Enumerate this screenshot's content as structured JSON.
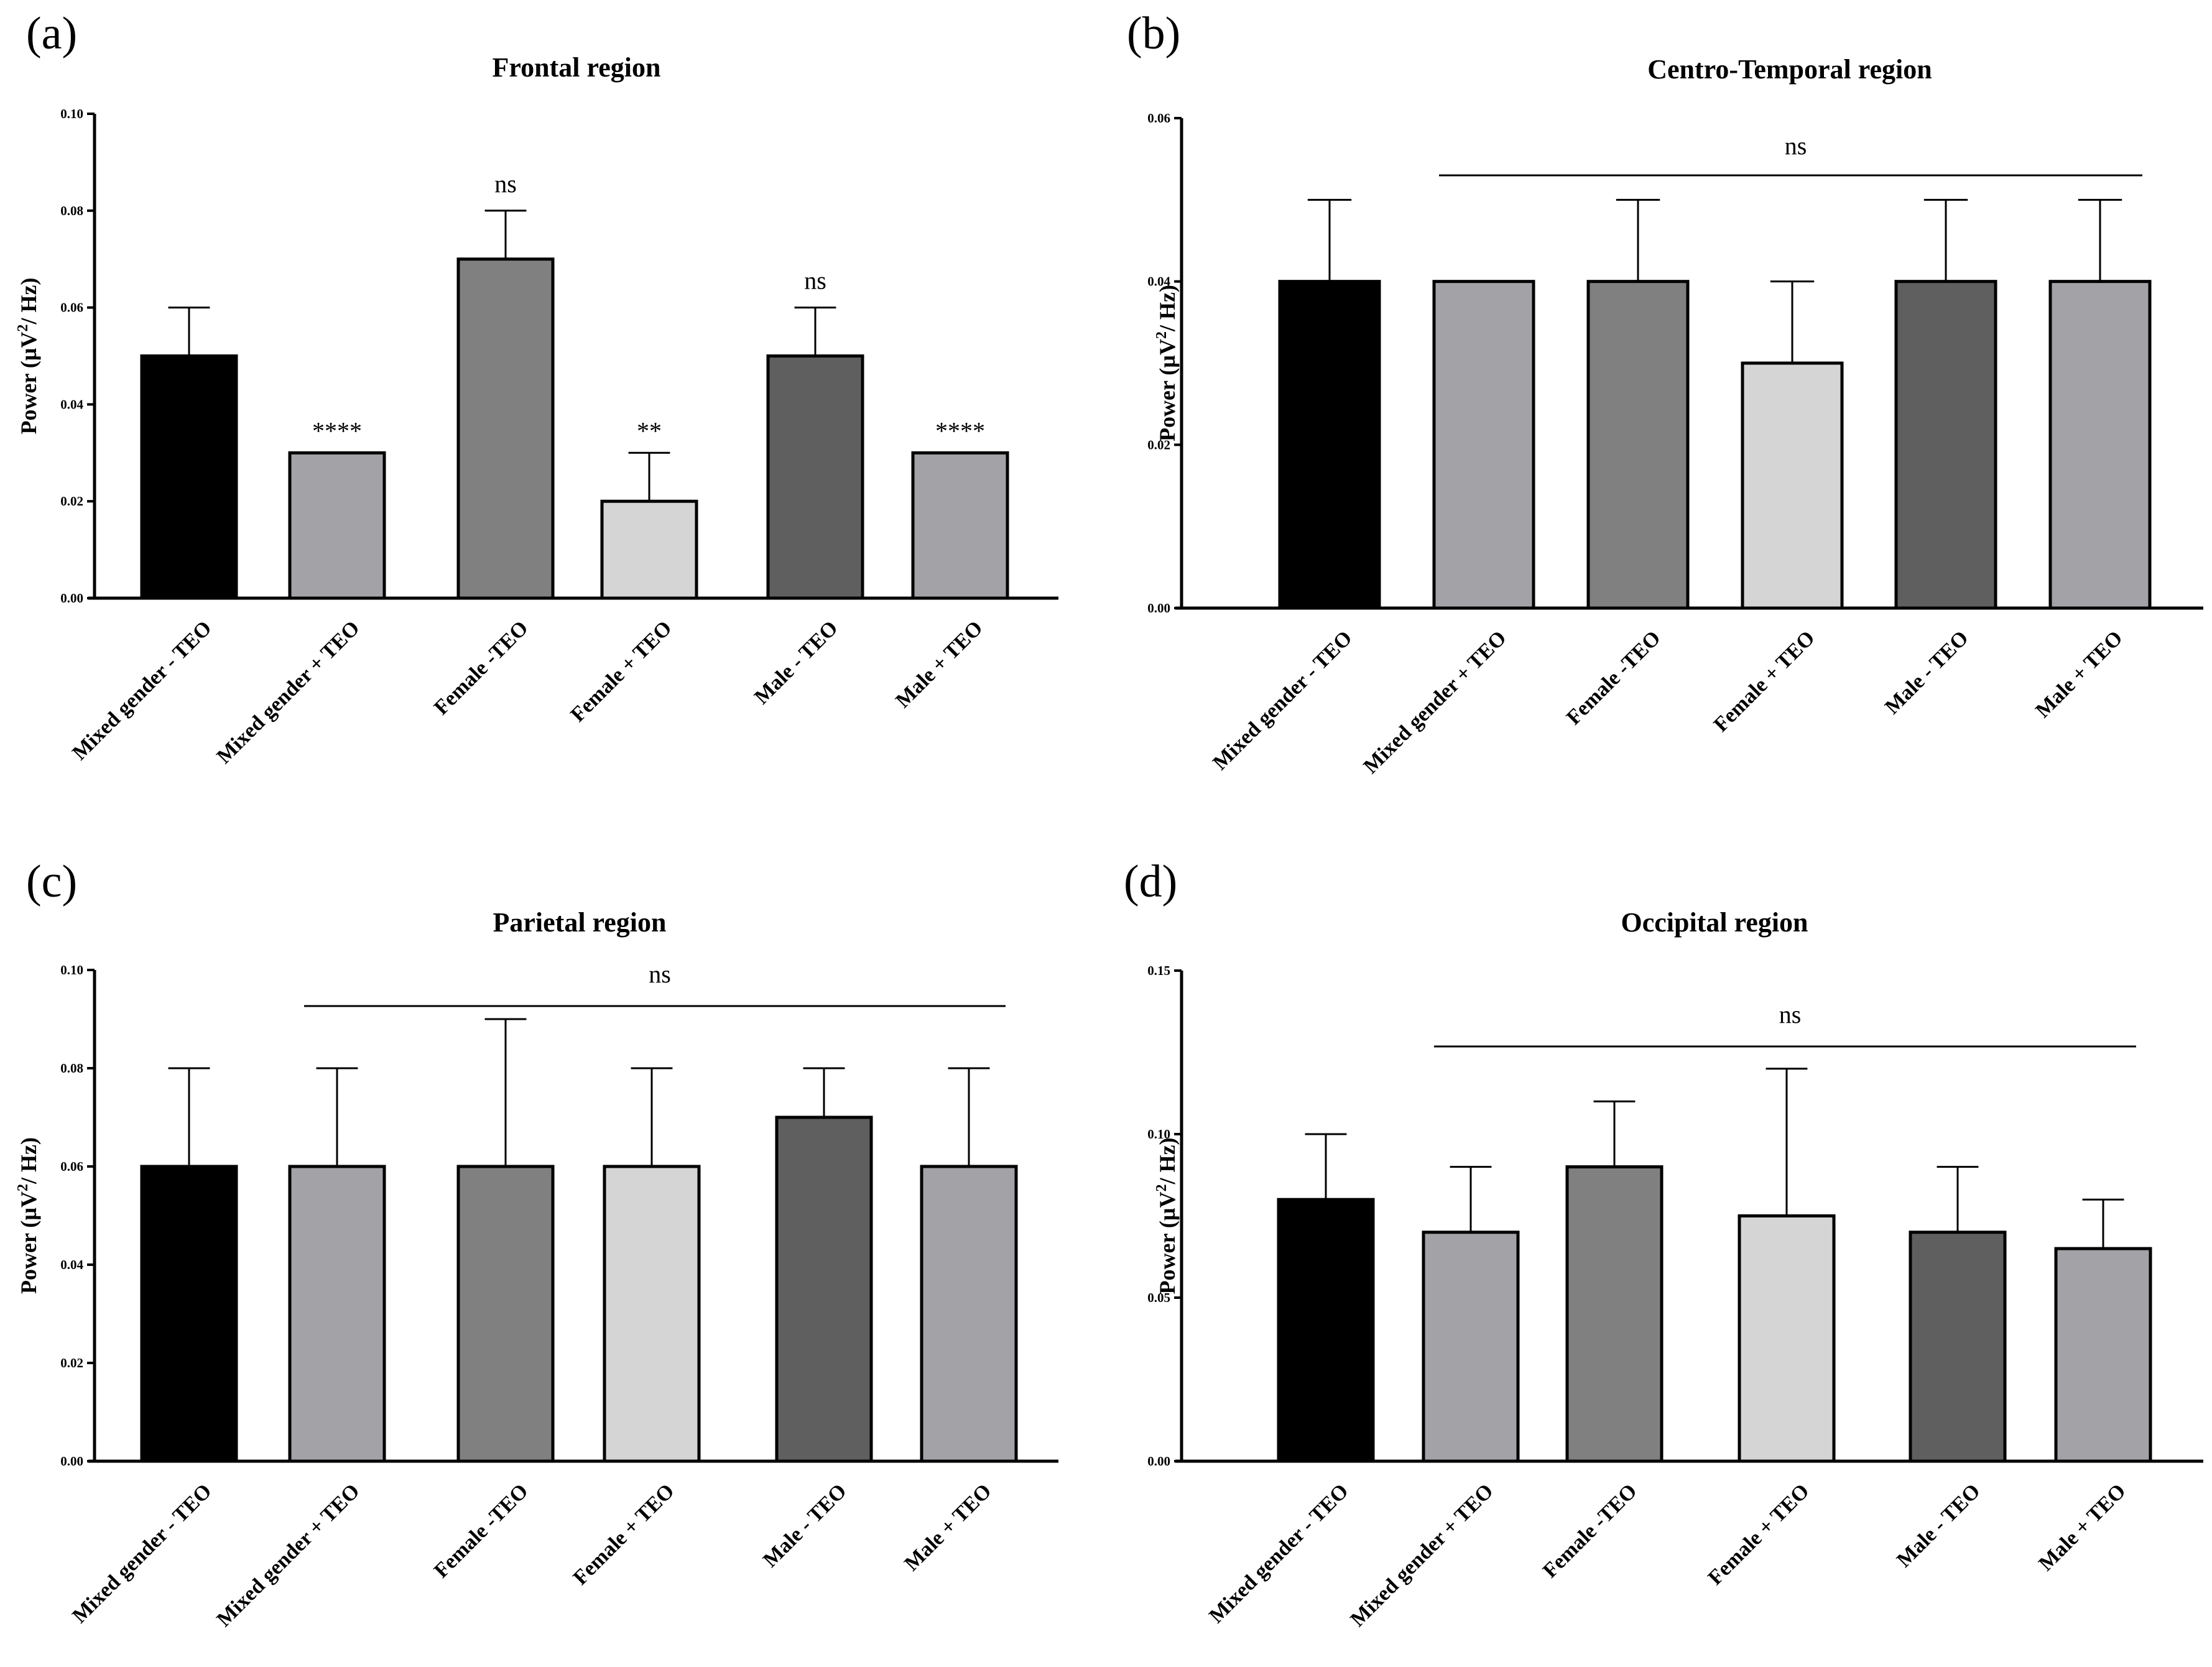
{
  "colors": {
    "Mixed gender - TEO": "#000000",
    "Mixed gender + TEO": "#a3a2a7",
    "Female -TEO": "#808080",
    "Female + TEO": "#d5d5d5",
    "Male - TEO": "#5f5f5f",
    "Male + TEO": "#a3a2a7"
  },
  "chart_data": [
    {
      "type": "bar",
      "panel_label": "(a)",
      "title": "Frontal region",
      "ylabel_prefix": "Power (µV",
      "ylabel_sup": "2",
      "ylabel_suffix": "/ Hz)",
      "categories": [
        "Mixed gender - TEO",
        "Mixed gender + TEO",
        "Female -TEO",
        "Female + TEO",
        "Male - TEO",
        "Male + TEO"
      ],
      "values": [
        0.05,
        0.03,
        0.07,
        0.02,
        0.05,
        0.03
      ],
      "errors": [
        0.01,
        0.0,
        0.01,
        0.01,
        0.01,
        0.0
      ],
      "ylim": [
        0,
        0.1
      ],
      "yticks": [
        0.0,
        0.02,
        0.04,
        0.06,
        0.08,
        0.1
      ],
      "ytick_labels": [
        "0.00",
        "0.02",
        "0.04",
        "0.06",
        "0.08",
        "0.10"
      ],
      "annotations": [
        "",
        "****",
        "ns",
        "**",
        "ns",
        "****"
      ],
      "bracket_label": ""
    },
    {
      "type": "bar",
      "panel_label": "(b)",
      "title": "Centro-Temporal region",
      "ylabel_prefix": "Power (µV",
      "ylabel_sup": "2",
      "ylabel_suffix": "/ Hz)",
      "categories": [
        "Mixed gender - TEO",
        "Mixed gender + TEO",
        "Female -TEO",
        "Female + TEO",
        "Male - TEO",
        "Male + TEO"
      ],
      "values": [
        0.04,
        0.04,
        0.04,
        0.03,
        0.04,
        0.04
      ],
      "errors": [
        0.01,
        0.0,
        0.01,
        0.01,
        0.01,
        0.01
      ],
      "ylim": [
        0,
        0.06
      ],
      "yticks": [
        0.0,
        0.02,
        0.04,
        0.06
      ],
      "ytick_labels": [
        "0.00",
        "0.02",
        "0.04",
        "0.06"
      ],
      "annotations": [
        "",
        "",
        "",
        "",
        "",
        ""
      ],
      "bracket_label": "ns"
    },
    {
      "type": "bar",
      "panel_label": "(c)",
      "title": "Parietal region",
      "ylabel_prefix": "Power (µV",
      "ylabel_sup": "2",
      "ylabel_suffix": "/ Hz)",
      "categories": [
        "Mixed gender - TEO",
        "Mixed gender + TEO",
        "Female -TEO",
        "Female + TEO",
        "Male - TEO",
        "Male + TEO"
      ],
      "values": [
        0.06,
        0.06,
        0.06,
        0.06,
        0.07,
        0.06
      ],
      "errors": [
        0.02,
        0.02,
        0.03,
        0.02,
        0.01,
        0.02
      ],
      "ylim": [
        0,
        0.1
      ],
      "yticks": [
        0.0,
        0.02,
        0.04,
        0.06,
        0.08,
        0.1
      ],
      "ytick_labels": [
        "0.00",
        "0.02",
        "0.04",
        "0.06",
        "0.08",
        "0.10"
      ],
      "annotations": [
        "",
        "",
        "",
        "",
        "",
        ""
      ],
      "bracket_label": "ns"
    },
    {
      "type": "bar",
      "panel_label": "(d)",
      "title": "Occipital region",
      "ylabel_prefix": "Power (µV",
      "ylabel_sup": "2",
      "ylabel_suffix": "/ Hz)",
      "categories": [
        "Mixed gender - TEO",
        "Mixed gender + TEO",
        "Female -TEO",
        "Female + TEO",
        "Male - TEO",
        "Male + TEO"
      ],
      "values": [
        0.08,
        0.07,
        0.09,
        0.075,
        0.07,
        0.065
      ],
      "errors": [
        0.02,
        0.02,
        0.02,
        0.045,
        0.02,
        0.015
      ],
      "ylim": [
        0,
        0.15
      ],
      "yticks": [
        0.0,
        0.05,
        0.1,
        0.15
      ],
      "ytick_labels": [
        "0.00",
        "0.05",
        "0.10",
        "0.15"
      ],
      "annotations": [
        "",
        "",
        "",
        "",
        "",
        ""
      ],
      "bracket_label": "ns"
    }
  ]
}
